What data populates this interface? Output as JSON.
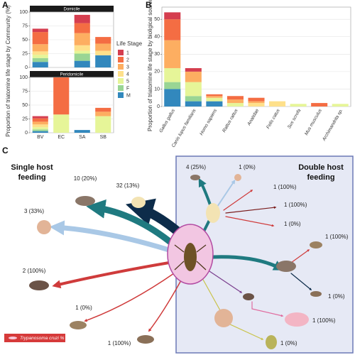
{
  "panels": [
    "A",
    "B",
    "C"
  ],
  "chart_data": [
    {
      "type": "bar",
      "stacked": true,
      "y_label": "Proportion of triatomine life stage by Community (%)",
      "legend_title": "Life Stage",
      "categories": [
        "BV",
        "EC",
        "SA",
        "SB"
      ],
      "ylim": [
        0,
        100
      ],
      "yticks": [
        0,
        25,
        50,
        75,
        100
      ],
      "grid": true,
      "series": [
        {
          "name": "1",
          "color": "#d53e4f"
        },
        {
          "name": "2",
          "color": "#f46d43"
        },
        {
          "name": "3",
          "color": "#fdae61"
        },
        {
          "name": "4",
          "color": "#fee08b"
        },
        {
          "name": "5",
          "color": "#e6f598"
        },
        {
          "name": "F",
          "color": "#99d594"
        },
        {
          "name": "M",
          "color": "#3288bd"
        }
      ],
      "facets": [
        {
          "title": "Domicile",
          "series": [
            {
              "values": [
                6,
                0,
                15,
                0
              ]
            },
            {
              "values": [
                22,
                0,
                18,
                12
              ]
            },
            {
              "values": [
                13,
                0,
                22,
                13
              ]
            },
            {
              "values": [
                6,
                0,
                10,
                8
              ]
            },
            {
              "values": [
                6,
                0,
                5,
                0
              ]
            },
            {
              "values": [
                7,
                0,
                13,
                0
              ]
            },
            {
              "values": [
                10,
                0,
                12,
                22
              ]
            }
          ]
        },
        {
          "title": "Peridomicile",
          "series": [
            {
              "values": [
                4,
                0,
                0,
                0
              ]
            },
            {
              "values": [
                6,
                67,
                0,
                7
              ]
            },
            {
              "values": [
                5,
                0,
                0,
                8
              ]
            },
            {
              "values": [
                5,
                0,
                0,
                0
              ]
            },
            {
              "values": [
                4,
                33,
                0,
                30
              ]
            },
            {
              "values": [
                3,
                0,
                0,
                0
              ]
            },
            {
              "values": [
                3,
                0,
                5,
                0
              ]
            }
          ]
        }
      ]
    },
    {
      "type": "bar",
      "stacked": true,
      "y_label": "Proportion of triatomine life stage by bioligical sources (%)",
      "categories": [
        "Gallus gallus",
        "Canis lupus familiaris",
        "Homo sapiens",
        "Rattus rattus",
        "Anatidae",
        "Felis catus",
        "Sus scrofa",
        "Mus musculus",
        "Archimandrita sp."
      ],
      "ylim": [
        0,
        57
      ],
      "yticks": [
        0,
        10,
        20,
        30,
        40,
        50
      ],
      "grid": true,
      "series": [
        {
          "color": "#d53e4f",
          "values": [
            4,
            2,
            0,
            0,
            0,
            0,
            0,
            0,
            0
          ]
        },
        {
          "color": "#f46d43",
          "values": [
            12,
            0,
            1,
            2,
            2,
            0,
            0,
            2,
            0
          ]
        },
        {
          "color": "#fdae61",
          "values": [
            16,
            6,
            1,
            2,
            1,
            0,
            0,
            0,
            0
          ]
        },
        {
          "color": "#fee08b",
          "values": [
            0,
            0,
            0,
            0,
            2,
            3,
            0,
            0,
            0
          ]
        },
        {
          "color": "#e6f598",
          "values": [
            8,
            8,
            2,
            2,
            0,
            0,
            1.5,
            0,
            1.5
          ]
        },
        {
          "color": "#99d594",
          "values": [
            4,
            3,
            0,
            0,
            0,
            0,
            0,
            0,
            0
          ]
        },
        {
          "color": "#3288bd",
          "values": [
            10,
            3,
            3,
            0,
            0,
            0,
            0,
            0,
            0
          ]
        }
      ]
    }
  ],
  "diagram": {
    "single_title": [
      "Single host",
      "feeding"
    ],
    "double_title": [
      "Double host",
      "feeding"
    ],
    "single_labels": [
      "32 (13%)",
      "10 (20%)",
      "3 (33%)",
      "2 (100%)",
      "1 (0%)",
      "1 (100%)"
    ],
    "double_labels": [
      "4 (25%)",
      "1 (0%)",
      "1 (100%)",
      "1 (100%)",
      "1 (0%)",
      "1 (100%)",
      "1 (0%)",
      "1 (100%)",
      "1 (0%)"
    ],
    "legend": "Trypanosoma cruzi %"
  }
}
